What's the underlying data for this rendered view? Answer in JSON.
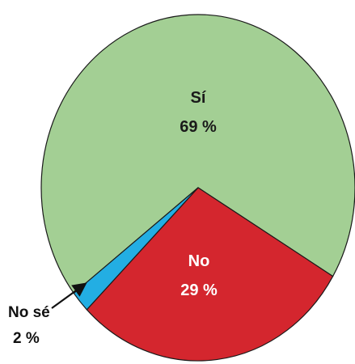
{
  "chart_data": {
    "type": "pie",
    "slices": [
      {
        "label": "Sí",
        "value": 69,
        "value_label": "69 %",
        "color": "#a3cf94"
      },
      {
        "label": "No",
        "value": 29,
        "value_label": "29 %",
        "color": "#d4262e"
      },
      {
        "label": "No sé",
        "value": 2,
        "value_label": "2 %",
        "color": "#23aee3"
      }
    ],
    "outline_color": "#1a1a1a",
    "label_colors": {
      "inside_dark": "#1a1a1a",
      "inside_light": "#ffffff"
    }
  }
}
